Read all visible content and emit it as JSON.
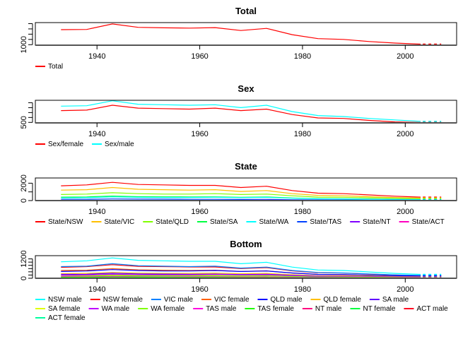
{
  "chart_data": [
    {
      "type": "line",
      "title": "Total",
      "x": [
        1933,
        1938,
        1943,
        1948,
        1953,
        1958,
        1963,
        1968,
        1973,
        1978,
        1983,
        1988,
        1993,
        1998,
        2003
      ],
      "forecast_end": 2007,
      "xlim": [
        1928,
        2010
      ],
      "xticks": [
        1940,
        1960,
        1980,
        2000
      ],
      "ylim": [
        900,
        5200
      ],
      "yticks": [
        1000,
        2000,
        3000,
        4000,
        5000
      ],
      "ytick_labels": [
        "1000"
      ],
      "series": [
        {
          "name": "Total",
          "color": "#FF0000",
          "values": [
            3850,
            3900,
            4950,
            4300,
            4200,
            4150,
            4250,
            3700,
            4100,
            2900,
            2150,
            2000,
            1600,
            1300,
            1100
          ]
        }
      ]
    },
    {
      "type": "line",
      "title": "Sex",
      "x": [
        1933,
        1938,
        1943,
        1948,
        1953,
        1958,
        1963,
        1968,
        1973,
        1978,
        1983,
        1988,
        1993,
        1998,
        2003
      ],
      "forecast_end": 2007,
      "xlim": [
        1928,
        2010
      ],
      "xticks": [
        1940,
        1960,
        1980,
        2000
      ],
      "ylim": [
        450,
        2750
      ],
      "yticks": [
        500,
        1000,
        1500,
        2000,
        2500
      ],
      "ytick_labels": [
        "500"
      ],
      "series": [
        {
          "name": "Sex/female",
          "color": "#FF0000",
          "values": [
            1700,
            1750,
            2250,
            1950,
            1900,
            1850,
            1950,
            1700,
            1850,
            1300,
            950,
            900,
            700,
            550,
            500
          ]
        },
        {
          "name": "Sex/male",
          "color": "#00FFFF",
          "values": [
            2150,
            2200,
            2700,
            2350,
            2300,
            2250,
            2300,
            2000,
            2250,
            1600,
            1200,
            1100,
            900,
            750,
            600
          ]
        }
      ]
    },
    {
      "type": "line",
      "title": "State",
      "x": [
        1933,
        1938,
        1943,
        1948,
        1953,
        1958,
        1963,
        1968,
        1973,
        1978,
        1983,
        1988,
        1993,
        1998,
        2003
      ],
      "forecast_end": 2007,
      "xlim": [
        1928,
        2010
      ],
      "xticks": [
        1940,
        1960,
        1980,
        2000
      ],
      "ylim": [
        0,
        2600
      ],
      "yticks": [
        0,
        1000,
        2000
      ],
      "ytick_labels": [
        "0",
        "2000"
      ],
      "series": [
        {
          "name": "State/NSW",
          "color": "#FF0000",
          "values": [
            1700,
            1800,
            2100,
            1850,
            1800,
            1750,
            1750,
            1500,
            1650,
            1150,
            850,
            800,
            650,
            500,
            400
          ]
        },
        {
          "name": "State/VIC",
          "color": "#FFBF00",
          "values": [
            1200,
            1250,
            1500,
            1300,
            1250,
            1200,
            1250,
            1050,
            1150,
            800,
            600,
            550,
            450,
            350,
            300
          ]
        },
        {
          "name": "State/QLD",
          "color": "#80FF00",
          "values": [
            700,
            750,
            900,
            800,
            750,
            750,
            800,
            700,
            750,
            550,
            400,
            380,
            320,
            260,
            220
          ]
        },
        {
          "name": "State/SA",
          "color": "#00FF40",
          "values": [
            400,
            420,
            520,
            450,
            430,
            420,
            430,
            380,
            420,
            300,
            220,
            200,
            170,
            140,
            120
          ]
        },
        {
          "name": "State/WA",
          "color": "#00FFFF",
          "values": [
            300,
            330,
            420,
            370,
            360,
            360,
            380,
            340,
            370,
            270,
            200,
            190,
            160,
            130,
            110
          ]
        },
        {
          "name": "State/TAS",
          "color": "#0040FF",
          "values": [
            150,
            150,
            190,
            170,
            160,
            150,
            150,
            130,
            140,
            100,
            80,
            70,
            60,
            50,
            40
          ]
        },
        {
          "name": "State/NT",
          "color": "#8000FF",
          "values": [
            20,
            20,
            30,
            25,
            25,
            30,
            30,
            30,
            40,
            30,
            25,
            25,
            20,
            20,
            15
          ]
        },
        {
          "name": "State/ACT",
          "color": "#FF00BF",
          "values": [
            10,
            10,
            15,
            15,
            20,
            25,
            30,
            35,
            40,
            30,
            25,
            20,
            18,
            15,
            12
          ]
        }
      ]
    },
    {
      "type": "line",
      "title": "Bottom",
      "x": [
        1933,
        1938,
        1943,
        1948,
        1953,
        1958,
        1963,
        1968,
        1973,
        1978,
        1983,
        1988,
        1993,
        1998,
        2003
      ],
      "forecast_end": 2007,
      "xlim": [
        1928,
        2010
      ],
      "xticks": [
        1940,
        1960,
        1980,
        2000
      ],
      "ylim": [
        0,
        1400
      ],
      "yticks": [
        0,
        200,
        400,
        600,
        800,
        1000,
        1200
      ],
      "ytick_labels": [
        "0",
        "1200"
      ],
      "series": [
        {
          "name": "NSW male",
          "color": "#00FFFF",
          "values": [
            1020,
            1080,
            1260,
            1110,
            1080,
            1050,
            1050,
            900,
            990,
            690,
            510,
            480,
            390,
            300,
            240
          ]
        },
        {
          "name": "NSW female",
          "color": "#FF0000",
          "values": [
            680,
            720,
            840,
            740,
            720,
            700,
            700,
            600,
            660,
            460,
            340,
            320,
            260,
            200,
            160
          ]
        },
        {
          "name": "VIC male",
          "color": "#0080FF",
          "values": [
            720,
            750,
            900,
            780,
            750,
            720,
            750,
            630,
            690,
            480,
            360,
            330,
            270,
            210,
            180
          ]
        },
        {
          "name": "VIC female",
          "color": "#FF6000",
          "values": [
            480,
            500,
            600,
            520,
            500,
            480,
            500,
            420,
            460,
            320,
            240,
            220,
            180,
            140,
            120
          ]
        },
        {
          "name": "QLD male",
          "color": "#0000FF",
          "values": [
            420,
            450,
            540,
            480,
            450,
            450,
            480,
            420,
            450,
            330,
            240,
            230,
            190,
            160,
            130
          ]
        },
        {
          "name": "QLD female",
          "color": "#FFBF00",
          "values": [
            280,
            300,
            360,
            320,
            300,
            300,
            320,
            280,
            300,
            220,
            160,
            150,
            130,
            100,
            90
          ]
        },
        {
          "name": "SA male",
          "color": "#6000FF",
          "values": [
            240,
            250,
            310,
            270,
            260,
            250,
            260,
            230,
            250,
            180,
            130,
            120,
            100,
            85,
            70
          ]
        },
        {
          "name": "SA female",
          "color": "#DFFF00",
          "values": [
            160,
            170,
            210,
            180,
            170,
            170,
            170,
            150,
            170,
            120,
            90,
            80,
            70,
            55,
            50
          ]
        },
        {
          "name": "WA male",
          "color": "#BF00FF",
          "values": [
            180,
            200,
            250,
            220,
            215,
            215,
            230,
            205,
            220,
            160,
            120,
            115,
            95,
            80,
            65
          ]
        },
        {
          "name": "WA female",
          "color": "#80FF00",
          "values": [
            120,
            130,
            170,
            150,
            145,
            145,
            150,
            135,
            150,
            110,
            80,
            75,
            65,
            50,
            45
          ]
        },
        {
          "name": "TAS male",
          "color": "#FF00DF",
          "values": [
            90,
            90,
            115,
            100,
            95,
            90,
            90,
            80,
            85,
            60,
            50,
            40,
            35,
            30,
            25
          ]
        },
        {
          "name": "TAS female",
          "color": "#20FF00",
          "values": [
            60,
            60,
            75,
            70,
            65,
            60,
            60,
            50,
            55,
            40,
            30,
            30,
            25,
            20,
            15
          ]
        },
        {
          "name": "NT male",
          "color": "#FF0080",
          "values": [
            15,
            15,
            20,
            18,
            18,
            20,
            20,
            20,
            25,
            20,
            15,
            15,
            12,
            12,
            10
          ]
        },
        {
          "name": "NT female",
          "color": "#00FF40",
          "values": [
            5,
            5,
            10,
            7,
            7,
            10,
            10,
            10,
            15,
            10,
            10,
            10,
            8,
            8,
            5
          ]
        },
        {
          "name": "ACT male",
          "color": "#FF0020",
          "values": [
            6,
            6,
            9,
            9,
            12,
            15,
            18,
            20,
            24,
            18,
            15,
            12,
            11,
            9,
            7
          ]
        },
        {
          "name": "ACT female",
          "color": "#00FF9F",
          "values": [
            4,
            4,
            6,
            6,
            8,
            10,
            12,
            15,
            16,
            12,
            10,
            8,
            7,
            6,
            5
          ]
        }
      ]
    }
  ]
}
